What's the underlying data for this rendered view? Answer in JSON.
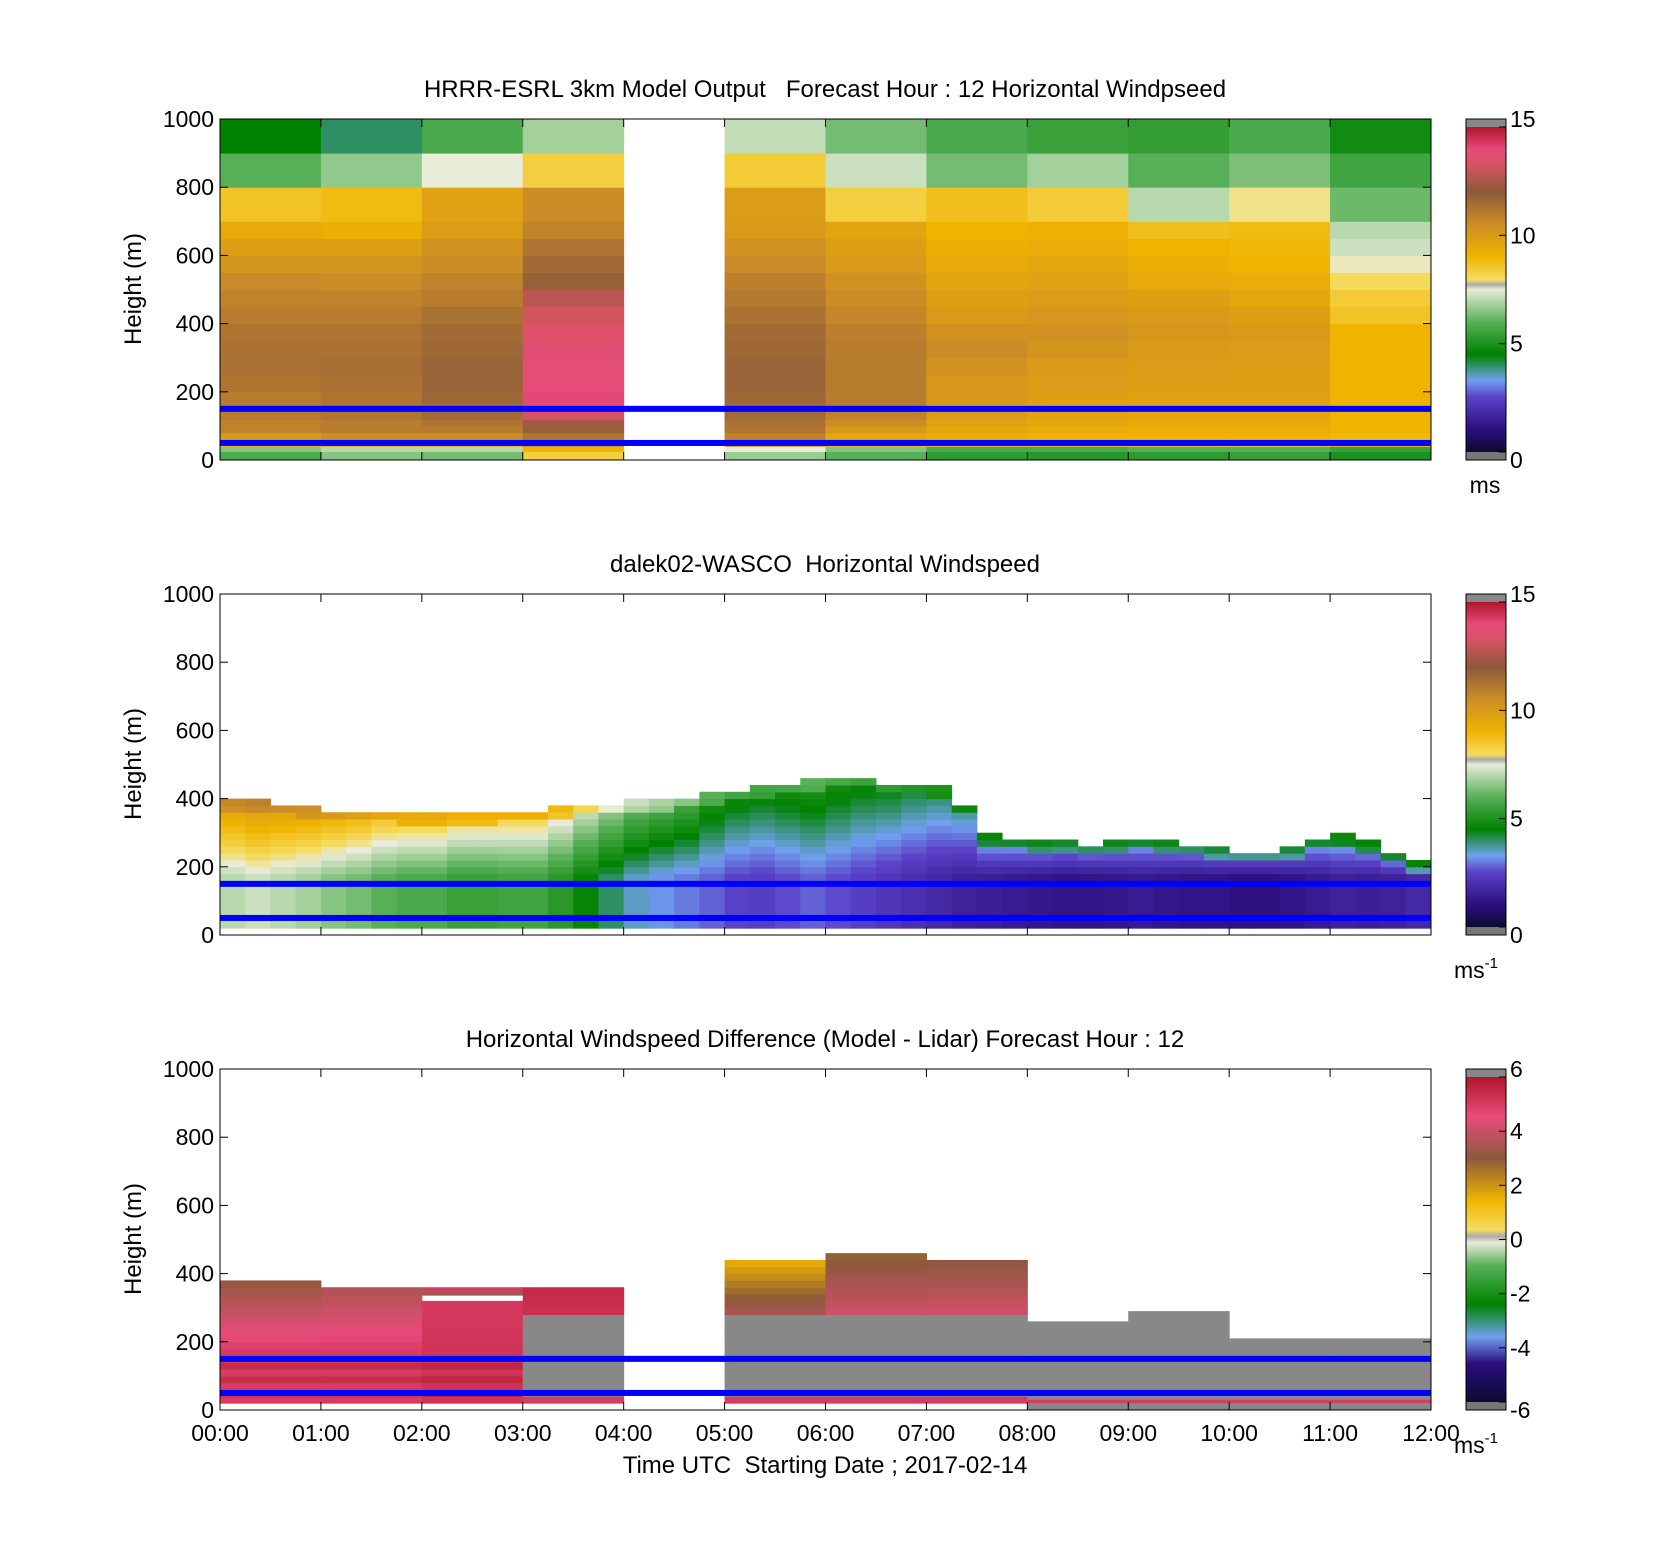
{
  "chart_data": [
    {
      "type": "heatmap",
      "title": "HRRR-ESRL 3km Model Output   Forecast Hour : 12 Horizontal Windpseed",
      "xlabel": "",
      "ylabel": "Height (m)",
      "ylim": [
        0,
        1000
      ],
      "xlim_hours": [
        0,
        12
      ],
      "yticks": [
        "0",
        "200",
        "400",
        "600",
        "800",
        "1000"
      ],
      "xticks": [],
      "colorbar": {
        "range": [
          0,
          15
        ],
        "ticks": [
          "0",
          "5",
          "10",
          "15"
        ],
        "unit": "ms",
        "unit_exp": "",
        "scale": "speed"
      },
      "reference_lines_m": [
        50,
        150
      ],
      "grid_type": "blocks",
      "layer_edges_m": [
        0,
        25,
        40,
        60,
        80,
        100,
        120,
        140,
        170,
        200,
        250,
        300,
        350,
        400,
        450,
        500,
        550,
        600,
        650,
        700,
        800,
        900,
        1000
      ],
      "columns": [
        {
          "hour_start": 0,
          "values": [
            5.8,
            6.5,
            8.8,
            10.0,
            10.8,
            10.8,
            11.0,
            11.0,
            11.0,
            11.2,
            11.3,
            11.3,
            11.2,
            11.0,
            10.8,
            10.6,
            10.2,
            9.8,
            9.4,
            8.6,
            6.0,
            4.5
          ]
        },
        {
          "hour_start": 1,
          "values": [
            6.5,
            7.0,
            9.2,
            10.5,
            11.0,
            11.0,
            11.2,
            11.2,
            11.2,
            11.3,
            11.4,
            11.3,
            11.2,
            11.0,
            10.8,
            10.5,
            10.2,
            9.8,
            9.2,
            8.8,
            6.6,
            4.0
          ]
        },
        {
          "hour_start": 2,
          "values": [
            6.3,
            7.0,
            9.2,
            10.5,
            11.0,
            11.2,
            11.5,
            11.5,
            11.6,
            11.7,
            11.7,
            11.6,
            11.5,
            11.3,
            11.0,
            10.8,
            10.5,
            10.3,
            9.9,
            9.7,
            7.5,
            5.8
          ]
        },
        {
          "hour_start": 3,
          "values": [
            8.3,
            9.0,
            10.5,
            11.2,
            11.8,
            12.4,
            13.3,
            13.8,
            14.0,
            13.9,
            13.8,
            13.7,
            13.5,
            13.2,
            12.8,
            11.8,
            11.5,
            11.2,
            10.8,
            10.5,
            8.3,
            6.8
          ]
        },
        {
          "hour_start": 4,
          "values": []
        },
        {
          "hour_start": 5,
          "values": [
            6.7,
            7.5,
            9.8,
            10.8,
            11.2,
            11.3,
            11.5,
            11.5,
            11.6,
            11.7,
            11.7,
            11.6,
            11.5,
            11.3,
            11.1,
            10.9,
            10.6,
            10.3,
            10.0,
            9.9,
            8.4,
            7.1
          ]
        },
        {
          "hour_start": 6,
          "values": [
            6.0,
            6.5,
            8.8,
            9.5,
            10.0,
            10.5,
            10.8,
            11.0,
            11.0,
            11.0,
            11.0,
            11.0,
            10.9,
            10.7,
            10.5,
            10.3,
            10.0,
            9.8,
            9.6,
            8.3,
            7.2,
            6.3
          ]
        },
        {
          "hour_start": 7,
          "values": [
            5.3,
            5.8,
            8.6,
            9.2,
            9.5,
            9.7,
            9.9,
            10.0,
            10.1,
            10.1,
            10.3,
            10.5,
            10.3,
            10.0,
            9.8,
            9.6,
            9.4,
            9.2,
            9.0,
            8.7,
            6.3,
            5.8
          ]
        },
        {
          "hour_start": 8,
          "values": [
            5.2,
            5.8,
            8.6,
            9.0,
            9.3,
            9.5,
            9.6,
            9.7,
            9.8,
            9.9,
            10.0,
            10.2,
            10.3,
            10.1,
            9.9,
            9.7,
            9.5,
            9.3,
            9.1,
            8.4,
            6.8,
            5.5
          ]
        },
        {
          "hour_start": 9,
          "values": [
            5.3,
            6.0,
            8.6,
            9.0,
            9.2,
            9.4,
            9.5,
            9.6,
            9.7,
            9.8,
            9.9,
            10.0,
            10.1,
            10.0,
            9.8,
            9.4,
            9.2,
            9.0,
            8.7,
            7.0,
            6.0,
            5.4
          ]
        },
        {
          "hour_start": 10,
          "values": [
            5.5,
            6.0,
            8.5,
            9.0,
            9.2,
            9.4,
            9.5,
            9.6,
            9.7,
            9.8,
            9.8,
            9.9,
            10.0,
            9.8,
            9.5,
            9.3,
            9.0,
            8.9,
            8.8,
            7.8,
            6.4,
            5.8
          ]
        },
        {
          "hour_start": 11,
          "values": [
            5.0,
            5.5,
            8.8,
            8.9,
            9.0,
            9.0,
            9.0,
            9.0,
            9.0,
            9.0,
            9.0,
            9.0,
            9.0,
            8.6,
            8.4,
            8.0,
            7.6,
            7.2,
            7.0,
            6.2,
            5.6,
            4.8
          ]
        }
      ]
    },
    {
      "type": "heatmap",
      "title": "dalek02-WASCO  Horizontal Windspeed",
      "xlabel": "",
      "ylabel": "Height (m)",
      "ylim": [
        0,
        1000
      ],
      "xlim_hours": [
        0,
        12
      ],
      "yticks": [
        "0",
        "200",
        "400",
        "600",
        "800",
        "1000"
      ],
      "xticks": [],
      "colorbar": {
        "range": [
          0,
          15
        ],
        "ticks": [
          "0",
          "5",
          "10",
          "15"
        ],
        "unit": "ms",
        "unit_exp": "-1",
        "scale": "speed"
      },
      "reference_lines_m": [
        50,
        150
      ],
      "grid_type": "profiles",
      "time_step_hours": 0.25,
      "height_step_m": 20,
      "profile_tops_m": [
        390,
        390,
        380,
        370,
        360,
        360,
        360,
        350,
        350,
        350,
        350,
        360,
        360,
        370,
        380,
        380,
        390,
        390,
        400,
        410,
        420,
        430,
        440,
        450,
        460,
        460,
        440,
        440,
        430,
        380,
        290,
        280,
        270,
        270,
        260,
        270,
        280,
        270,
        260,
        250,
        240,
        240,
        250,
        280,
        290,
        270,
        240,
        210
      ],
      "profile_jets": [
        7.0,
        7.2,
        7.0,
        6.8,
        6.5,
        6.3,
        6.0,
        5.8,
        5.8,
        5.5,
        5.5,
        5.6,
        5.6,
        5.2,
        4.6,
        4.0,
        3.5,
        3.2,
        3.0,
        2.8,
        2.5,
        2.4,
        2.6,
        2.8,
        2.6,
        2.4,
        2.2,
        2.0,
        1.8,
        1.6,
        1.5,
        1.4,
        1.3,
        1.2,
        1.2,
        1.3,
        1.4,
        1.3,
        1.2,
        1.2,
        1.1,
        1.1,
        1.2,
        1.4,
        1.6,
        1.5,
        1.6,
        1.8
      ]
    },
    {
      "type": "heatmap",
      "title": "Horizontal Windspeed Difference (Model - Lidar) Forecast Hour : 12",
      "xlabel": "Time UTC  Starting Date ; 2017-02-14",
      "ylabel": "Height (m)",
      "ylim": [
        0,
        1000
      ],
      "xlim_hours": [
        0,
        12
      ],
      "yticks": [
        "0",
        "200",
        "400",
        "600",
        "800",
        "1000"
      ],
      "xticks": [
        "00:00",
        "01:00",
        "02:00",
        "03:00",
        "04:00",
        "05:00",
        "06:00",
        "07:00",
        "08:00",
        "09:00",
        "10:00",
        "11:00",
        "12:00"
      ],
      "colorbar": {
        "range": [
          -6,
          6
        ],
        "ticks": [
          "-6",
          "-4",
          "-2",
          "0",
          "2",
          "4",
          "6"
        ],
        "unit": "ms",
        "unit_exp": "-1",
        "scale": "diff"
      },
      "reference_lines_m": [
        50,
        150
      ],
      "grid_type": "diff",
      "columns": [
        {
          "hour_start": 0,
          "top_m": 380,
          "fill_top_m": 380,
          "base_value": 5.0,
          "upper_value": 3.0
        },
        {
          "hour_start": 1,
          "top_m": 360,
          "fill_top_m": 360,
          "base_value": 5.0,
          "upper_value": 3.5
        },
        {
          "hour_start": 2,
          "top_m": 350,
          "fill_top_m": 320,
          "base_value": 5.2,
          "upper_value": 5.0
        },
        {
          "hour_start": 3,
          "top_m": 360,
          "fill_top_m": 280,
          "base_value": 5.0,
          "upper_value": 5.5
        },
        {
          "hour_start": 4,
          "top_m": 0,
          "fill_top_m": 0,
          "base_value": null,
          "upper_value": null
        },
        {
          "hour_start": 5,
          "top_m": 430,
          "fill_top_m": 270,
          "base_value": 5.0,
          "upper_value": 1.5
        },
        {
          "hour_start": 6,
          "top_m": 450,
          "fill_top_m": 270,
          "base_value": 5.0,
          "upper_value": 2.8
        },
        {
          "hour_start": 7,
          "top_m": 430,
          "fill_top_m": 280,
          "base_value": 5.0,
          "upper_value": 3.0
        },
        {
          "hour_start": 8,
          "top_m": 260,
          "fill_top_m": 260,
          "base_value": null,
          "upper_value": null
        },
        {
          "hour_start": 9,
          "top_m": 290,
          "fill_top_m": 290,
          "base_value": null,
          "upper_value": null
        },
        {
          "hour_start": 10,
          "top_m": 210,
          "fill_top_m": 210,
          "base_value": null,
          "upper_value": null
        },
        {
          "hour_start": 11,
          "top_m": 210,
          "fill_top_m": 210,
          "base_value": null,
          "upper_value": null
        }
      ]
    }
  ],
  "colors": {
    "reference_line": "#0000ff",
    "saturated": "#888888",
    "speed_stops": [
      "#777777",
      "#0c0a30",
      "#2c0f7f",
      "#5b43c9",
      "#6fa1ee",
      "#008200",
      "#57b057",
      "#e8ecd8",
      "#f5dc60",
      "#f0b400",
      "#cd8d26",
      "#8c5a3c",
      "#d4545e",
      "#e84b7a",
      "#b0162b",
      "#888888"
    ],
    "diff_stops": [
      "#777777",
      "#0c0a30",
      "#2c0f7f",
      "#6fa1ee",
      "#008200",
      "#57b057",
      "#e8ecd8",
      "#f5dc60",
      "#f0b400",
      "#8c5a3c",
      "#e84b7a",
      "#b0162b",
      "#888888"
    ]
  }
}
